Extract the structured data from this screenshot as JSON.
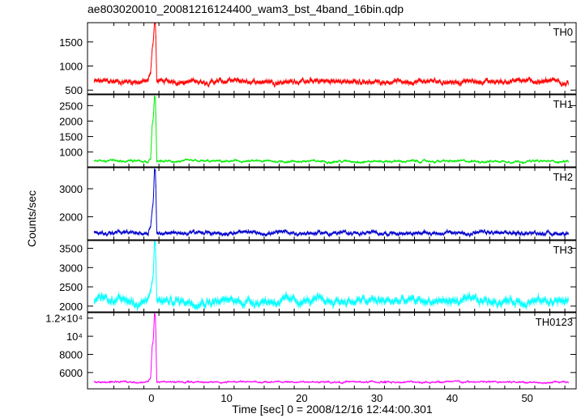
{
  "chart_data": {
    "type": "line",
    "title": "ae803020010_20081216124400_wam3_bst_4band_16bin.qdp",
    "xlabel": "Time [sec] 0 = 2008/12/16 12:44:00.301",
    "ylabel": "Counts/sec",
    "xlim": [
      -8.5,
      56.5
    ],
    "x_ticks": [
      0,
      10,
      20,
      30,
      40,
      50
    ],
    "x_tick_labels": [
      "0",
      "10",
      "20",
      "30",
      "40",
      "50"
    ],
    "shared_x_axis": true,
    "error_bars": true,
    "x_start": -7.6,
    "x_end": 55.5,
    "burst_peak_time": 0.5,
    "panels": [
      {
        "name": "TH0",
        "color": "#ff0000",
        "ylim": [
          420,
          1900
        ],
        "yticks": [
          500,
          1000,
          1500
        ],
        "ytick_labels": [
          "500",
          "1000",
          "1500"
        ],
        "baseline": 680,
        "noise": 55,
        "burst": [
          [
            -0.4,
            760
          ],
          [
            -0.1,
            860
          ],
          [
            0.1,
            1350
          ],
          [
            0.25,
            1500
          ],
          [
            0.4,
            1900
          ],
          [
            0.55,
            1900
          ],
          [
            0.7,
            720
          ]
        ]
      },
      {
        "name": "TH1",
        "color": "#00ee00",
        "ylim": [
          520,
          2850
        ],
        "yticks": [
          1000,
          1500,
          2000,
          2500
        ],
        "ytick_labels": [
          "1000",
          "1500",
          "2000",
          "2500"
        ],
        "baseline": 700,
        "noise": 40,
        "burst": [
          [
            -0.4,
            720
          ],
          [
            -0.1,
            780
          ],
          [
            0.1,
            1900
          ],
          [
            0.25,
            2050
          ],
          [
            0.4,
            2800
          ],
          [
            0.55,
            2750
          ],
          [
            0.7,
            720
          ]
        ]
      },
      {
        "name": "TH2",
        "color": "#0000cc",
        "ylim": [
          1180,
          3750
        ],
        "yticks": [
          2000,
          3000
        ],
        "ytick_labels": [
          "2000",
          "3000"
        ],
        "baseline": 1420,
        "noise": 75,
        "burst": [
          [
            -0.4,
            1500
          ],
          [
            -0.1,
            1650
          ],
          [
            0.1,
            2250
          ],
          [
            0.25,
            2500
          ],
          [
            0.4,
            3700
          ],
          [
            0.55,
            3650
          ],
          [
            0.7,
            1450
          ]
        ]
      },
      {
        "name": "TH3",
        "color": "#00ffff",
        "ylim": [
          1850,
          3700
        ],
        "yticks": [
          2000,
          2500,
          3000,
          3500
        ],
        "ytick_labels": [
          "2000",
          "2500",
          "3000",
          "3500"
        ],
        "baseline": 2130,
        "noise": 110,
        "burst": [
          [
            -0.4,
            2250
          ],
          [
            -0.1,
            2400
          ],
          [
            0.1,
            2650
          ],
          [
            0.25,
            2800
          ],
          [
            0.4,
            3650
          ],
          [
            0.55,
            3600
          ],
          [
            0.7,
            2150
          ]
        ]
      },
      {
        "name": "TH0123",
        "color": "#ff00ff",
        "ylim": [
          4200,
          12600
        ],
        "yticks": [
          6000,
          8000,
          10000,
          12000
        ],
        "ytick_labels": [
          "6000",
          "8000",
          "10⁴",
          "1.2×10⁴"
        ],
        "baseline": 4950,
        "noise": 110,
        "burst": [
          [
            -0.4,
            5100
          ],
          [
            -0.1,
            5400
          ],
          [
            0.1,
            9000
          ],
          [
            0.25,
            9400
          ],
          [
            0.4,
            12500
          ],
          [
            0.55,
            12300
          ],
          [
            0.7,
            5000
          ]
        ]
      }
    ]
  }
}
